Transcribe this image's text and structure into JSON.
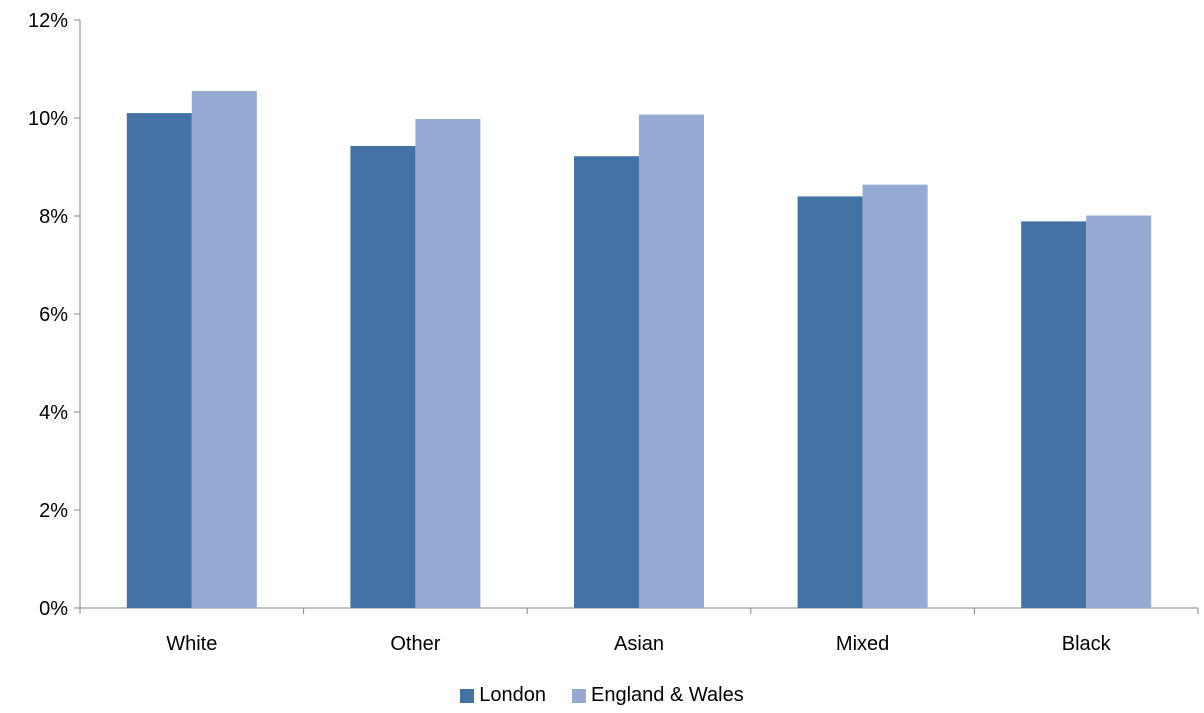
{
  "chart_data": {
    "type": "bar",
    "categories": [
      "White",
      "Other",
      "Asian",
      "Mixed",
      "Black"
    ],
    "series": [
      {
        "name": "London",
        "color": "#4472A4",
        "values": [
          10.1,
          9.43,
          9.22,
          8.4,
          7.89
        ]
      },
      {
        "name": "England & Wales",
        "color": "#95AAD2",
        "values": [
          10.55,
          9.98,
          10.07,
          8.64,
          8.01
        ]
      }
    ],
    "ylim": [
      0,
      12
    ],
    "yticks": [
      0,
      2,
      4,
      6,
      8,
      10,
      12
    ],
    "ytick_labels": [
      "0%",
      "2%",
      "4%",
      "6%",
      "8%",
      "10%",
      "12%"
    ],
    "title": "",
    "xlabel": "",
    "ylabel": "",
    "grid": false,
    "legend_position": "bottom"
  }
}
